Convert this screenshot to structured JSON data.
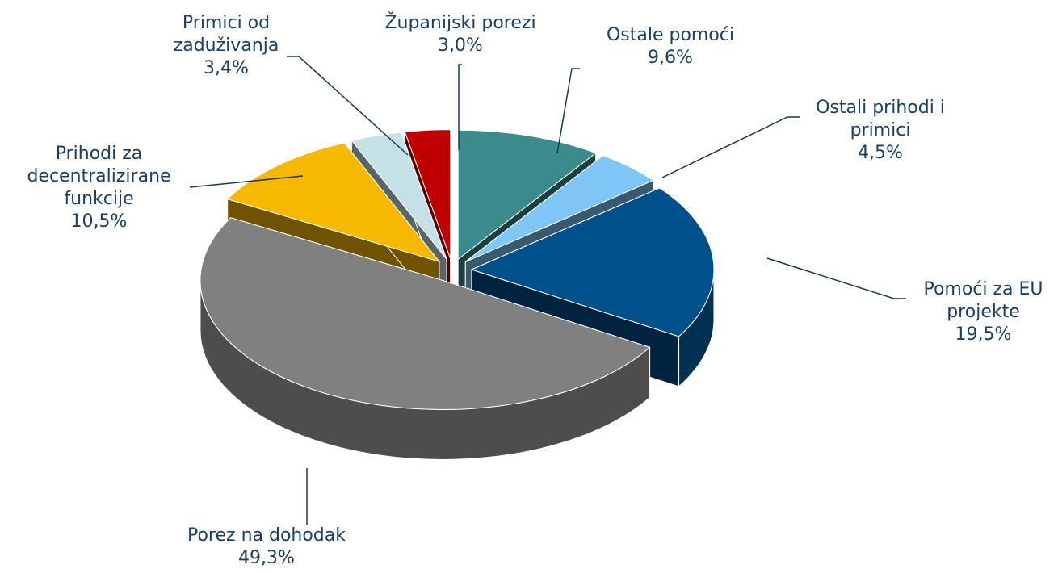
{
  "chart_data": {
    "type": "pie3d",
    "categories": [
      "Ostale pomoći",
      "Ostali prihodi i primici",
      "Pomoći za EU projekte",
      "Porez na dohodak",
      "Prihodi za decentralizirane funkcije",
      "Primici od zaduživanja",
      "Županijski porezi"
    ],
    "values": [
      9.6,
      4.5,
      19.5,
      49.3,
      10.5,
      3.4,
      3.0
    ],
    "value_labels": [
      "9,6%",
      "4,5%",
      "19,5%",
      "49,3%",
      "10,5%",
      "3,4%",
      "3,0%"
    ],
    "colors": [
      "#3b8b8d",
      "#7fc6f6",
      "#00508c",
      "#808080",
      "#f6b900",
      "#c6e0e7",
      "#c00000"
    ]
  }
}
